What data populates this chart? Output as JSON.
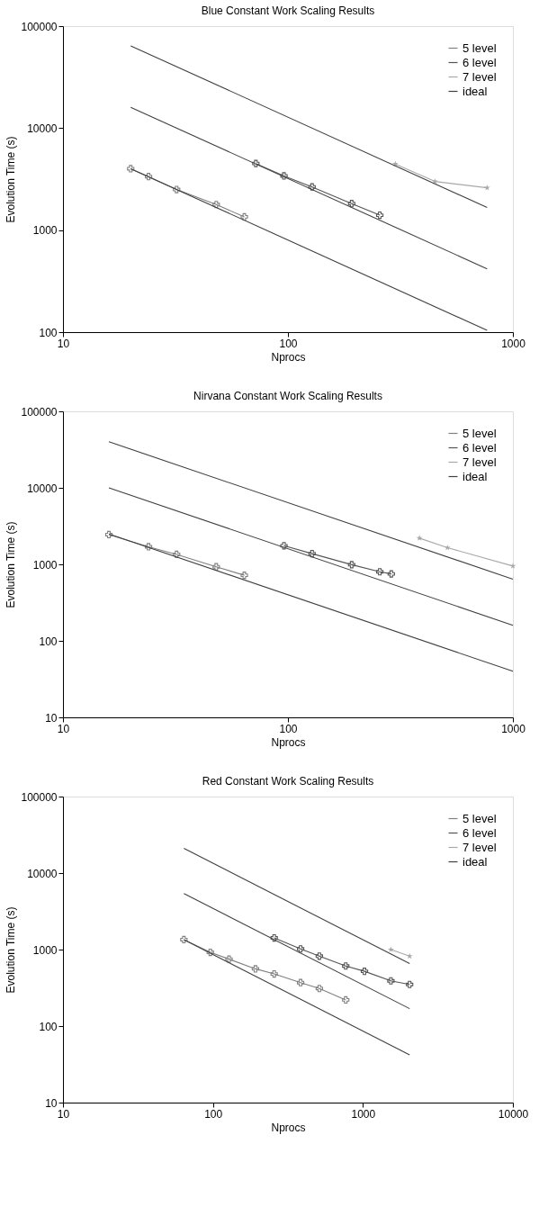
{
  "chart_data": [
    {
      "type": "line",
      "title": "Blue  Constant Work Scaling Results",
      "xlabel": "Nprocs",
      "ylabel": "Evolution Time (s)",
      "log": "xy",
      "grid": false,
      "legend": "top right",
      "xlim": [
        10,
        1000
      ],
      "xticks": [
        10,
        100,
        1000
      ],
      "ylim": [
        100,
        100000
      ],
      "yticks": [
        100,
        1000,
        10000,
        100000
      ],
      "series": [
        {
          "name": "5 level",
          "color": "#808080",
          "marker": "cross",
          "x": [
            20,
            24,
            32,
            48,
            64
          ],
          "values": [
            4000,
            3350,
            2500,
            1780,
            1350
          ]
        },
        {
          "name": "6 level",
          "color": "#555555",
          "marker": "cross",
          "x": [
            72,
            96,
            128,
            192,
            256
          ],
          "values": [
            4500,
            3400,
            2650,
            1820,
            1400
          ]
        },
        {
          "name": "7 level",
          "color": "#a8a8a8",
          "marker": "star",
          "x": [
            300,
            450,
            768
          ],
          "values": [
            4450,
            3000,
            2600
          ]
        },
        {
          "name": "ideal",
          "color": "#404040",
          "marker": "none",
          "x": [
            20,
            768
          ],
          "values": [
            64000,
            1667
          ]
        },
        {
          "color": "#404040",
          "marker": "none",
          "x": [
            20,
            768
          ],
          "values": [
            16000,
            417
          ]
        },
        {
          "color": "#404040",
          "marker": "none",
          "x": [
            20,
            768
          ],
          "values": [
            4000,
            104
          ]
        }
      ]
    },
    {
      "type": "line",
      "title": "Nirvana Constant Work Scaling Results",
      "xlabel": "Nprocs",
      "ylabel": "Evolution Time (s)",
      "log": "xy",
      "grid": false,
      "legend": "top right",
      "xlim": [
        10,
        1000
      ],
      "xticks": [
        10,
        100,
        1000
      ],
      "ylim": [
        10,
        100000
      ],
      "yticks": [
        10,
        100,
        1000,
        10000,
        100000
      ],
      "series": [
        {
          "name": "5 level",
          "color": "#808080",
          "marker": "cross",
          "x": [
            16,
            24,
            32,
            48,
            64
          ],
          "values": [
            2450,
            1700,
            1350,
            930,
            720
          ]
        },
        {
          "name": "6 level",
          "color": "#555555",
          "marker": "cross",
          "x": [
            96,
            128,
            192,
            256,
            288
          ],
          "values": [
            1750,
            1380,
            990,
            800,
            750
          ]
        },
        {
          "name": "7 level",
          "color": "#a8a8a8",
          "marker": "star",
          "x": [
            384,
            512,
            1000
          ],
          "values": [
            2200,
            1650,
            950
          ]
        },
        {
          "name": "ideal",
          "color": "#404040",
          "marker": "none",
          "x": [
            16,
            1000
          ],
          "values": [
            40000,
            640
          ]
        },
        {
          "color": "#404040",
          "marker": "none",
          "x": [
            16,
            1000
          ],
          "values": [
            10000,
            160
          ]
        },
        {
          "color": "#404040",
          "marker": "none",
          "x": [
            16,
            1000
          ],
          "values": [
            2500,
            40
          ]
        }
      ]
    },
    {
      "type": "line",
      "title": "Red Constant Work Scaling Results",
      "xlabel": "Nprocs",
      "ylabel": "Evolution Time (s)",
      "log": "xy",
      "grid": false,
      "legend": "top right",
      "xlim": [
        10,
        10000
      ],
      "xticks": [
        10,
        100,
        1000,
        10000
      ],
      "ylim": [
        10,
        100000
      ],
      "yticks": [
        10,
        100,
        1000,
        10000,
        100000
      ],
      "series": [
        {
          "name": "5 level",
          "color": "#808080",
          "marker": "cross",
          "x": [
            64,
            96,
            128,
            192,
            256,
            384,
            512,
            768
          ],
          "values": [
            1350,
            920,
            750,
            560,
            480,
            370,
            310,
            220
          ]
        },
        {
          "name": "6 level",
          "color": "#555555",
          "marker": "cross",
          "x": [
            256,
            384,
            512,
            768,
            1024,
            1536,
            2048
          ],
          "values": [
            1420,
            1020,
            820,
            610,
            520,
            390,
            350
          ]
        },
        {
          "name": "7 level",
          "color": "#a8a8a8",
          "marker": "star",
          "x": [
            1536,
            2048
          ],
          "values": [
            1000,
            820
          ]
        },
        {
          "name": "ideal",
          "color": "#404040",
          "marker": "none",
          "x": [
            64,
            2048
          ],
          "values": [
            21000,
            656
          ]
        },
        {
          "color": "#404040",
          "marker": "none",
          "x": [
            64,
            2048
          ],
          "values": [
            5400,
            169
          ]
        },
        {
          "color": "#404040",
          "marker": "none",
          "x": [
            64,
            2048
          ],
          "values": [
            1350,
            42
          ]
        }
      ]
    }
  ]
}
